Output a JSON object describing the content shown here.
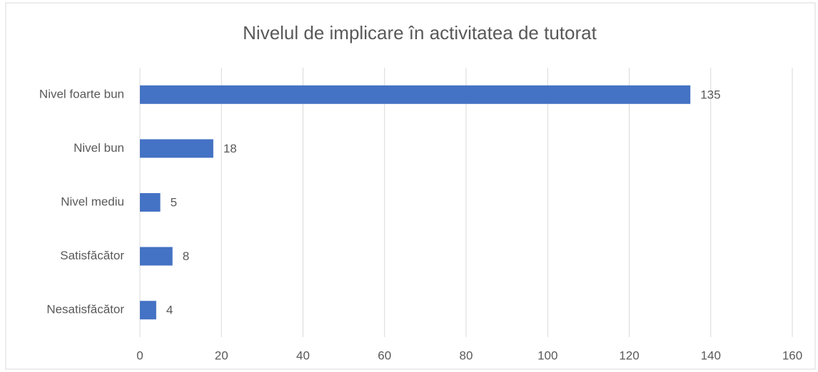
{
  "chart_data": {
    "type": "hbar",
    "title": "Nivelul de implicare în activitatea de tutorat",
    "categories": [
      "Nivel foarte bun",
      "Nivel bun",
      "Nivel mediu",
      "Satisfăcător",
      "Nesatisfăcător"
    ],
    "values": [
      135,
      18,
      5,
      8,
      4
    ],
    "color": "#4472c4",
    "xlim": [
      0,
      160
    ],
    "xticks": [
      0,
      20,
      40,
      60,
      80,
      100,
      120,
      140,
      160
    ],
    "grid": true
  }
}
